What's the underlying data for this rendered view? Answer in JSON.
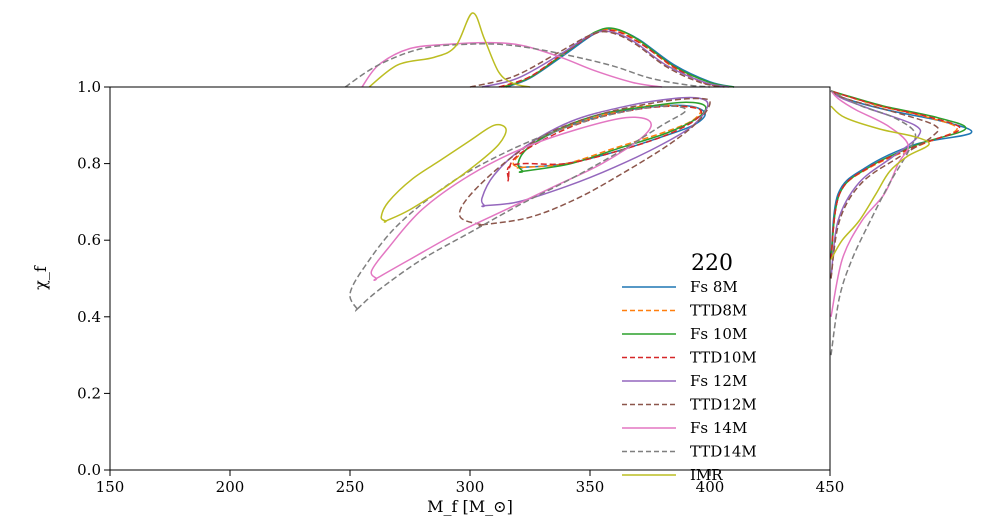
{
  "chart_data": {
    "type": "line",
    "title": "",
    "xlabel": "M_f [M_⊙]",
    "ylabel": "χ_f",
    "xlim": [
      150,
      450
    ],
    "ylim": [
      0.0,
      1.0
    ],
    "xticks": [
      "150",
      "200",
      "250",
      "300",
      "350",
      "400",
      "450"
    ],
    "yticks": [
      "0.0",
      "0.2",
      "0.4",
      "0.6",
      "0.8",
      "1.0"
    ],
    "grid": false,
    "legend": {
      "title": "220",
      "placement": "lower-right"
    },
    "series": [
      {
        "name": "Fs 8M",
        "color": "#1f77b4",
        "dash": "solid",
        "contour": [
          [
            322,
            0.79
          ],
          [
            340,
            0.8
          ],
          [
            360,
            0.83
          ],
          [
            380,
            0.87
          ],
          [
            393,
            0.9
          ],
          [
            398,
            0.93
          ],
          [
            392,
            0.95
          ],
          [
            378,
            0.95
          ],
          [
            358,
            0.93
          ],
          [
            338,
            0.89
          ],
          [
            324,
            0.84
          ],
          [
            320,
            0.8
          ],
          [
            322,
            0.79
          ]
        ],
        "mf_marginal": [
          [
            315,
            0.0
          ],
          [
            325,
            0.12
          ],
          [
            340,
            0.45
          ],
          [
            352,
            0.72
          ],
          [
            360,
            0.78
          ],
          [
            370,
            0.65
          ],
          [
            385,
            0.3
          ],
          [
            400,
            0.07
          ],
          [
            410,
            0.0
          ]
        ],
        "chi_marginal": [
          [
            0.55,
            0.0
          ],
          [
            0.72,
            0.05
          ],
          [
            0.79,
            0.25
          ],
          [
            0.85,
            0.6
          ],
          [
            0.88,
            1.0
          ],
          [
            0.91,
            0.8
          ],
          [
            0.94,
            0.4
          ],
          [
            0.97,
            0.1
          ],
          [
            0.99,
            0.0
          ]
        ]
      },
      {
        "name": "TTD8M",
        "color": "#ff7f0e",
        "dash": "dashed",
        "contour": [
          [
            321,
            0.79
          ],
          [
            340,
            0.8
          ],
          [
            360,
            0.84
          ],
          [
            380,
            0.88
          ],
          [
            392,
            0.91
          ],
          [
            396,
            0.94
          ],
          [
            388,
            0.95
          ],
          [
            372,
            0.95
          ],
          [
            352,
            0.92
          ],
          [
            334,
            0.88
          ],
          [
            322,
            0.83
          ],
          [
            318,
            0.8
          ],
          [
            321,
            0.79
          ]
        ],
        "mf_marginal": [
          [
            313,
            0.0
          ],
          [
            325,
            0.13
          ],
          [
            340,
            0.48
          ],
          [
            352,
            0.73
          ],
          [
            360,
            0.77
          ],
          [
            370,
            0.62
          ],
          [
            385,
            0.26
          ],
          [
            398,
            0.05
          ],
          [
            408,
            0.0
          ]
        ],
        "chi_marginal": [
          [
            0.55,
            0.0
          ],
          [
            0.72,
            0.06
          ],
          [
            0.79,
            0.28
          ],
          [
            0.85,
            0.65
          ],
          [
            0.89,
            0.9
          ],
          [
            0.92,
            0.7
          ],
          [
            0.95,
            0.35
          ],
          [
            0.98,
            0.08
          ],
          [
            0.99,
            0.0
          ]
        ]
      },
      {
        "name": "Fs 10M",
        "color": "#2ca02c",
        "dash": "solid",
        "contour": [
          [
            322,
            0.78
          ],
          [
            342,
            0.8
          ],
          [
            362,
            0.84
          ],
          [
            382,
            0.88
          ],
          [
            395,
            0.92
          ],
          [
            398,
            0.95
          ],
          [
            390,
            0.96
          ],
          [
            375,
            0.95
          ],
          [
            355,
            0.93
          ],
          [
            337,
            0.89
          ],
          [
            324,
            0.84
          ],
          [
            320,
            0.8
          ],
          [
            322,
            0.78
          ]
        ],
        "mf_marginal": [
          [
            314,
            0.0
          ],
          [
            325,
            0.13
          ],
          [
            340,
            0.47
          ],
          [
            352,
            0.74
          ],
          [
            360,
            0.79
          ],
          [
            370,
            0.64
          ],
          [
            385,
            0.28
          ],
          [
            400,
            0.06
          ],
          [
            410,
            0.0
          ]
        ],
        "chi_marginal": [
          [
            0.55,
            0.0
          ],
          [
            0.72,
            0.06
          ],
          [
            0.79,
            0.27
          ],
          [
            0.85,
            0.62
          ],
          [
            0.89,
            0.96
          ],
          [
            0.92,
            0.76
          ],
          [
            0.95,
            0.38
          ],
          [
            0.98,
            0.09
          ],
          [
            0.99,
            0.0
          ]
        ]
      },
      {
        "name": "TTD10M",
        "color": "#d62728",
        "dash": "dashed",
        "contour": [
          [
            316,
            0.76
          ],
          [
            316,
            0.79
          ],
          [
            322,
            0.8
          ],
          [
            340,
            0.8
          ],
          [
            360,
            0.83
          ],
          [
            380,
            0.87
          ],
          [
            393,
            0.91
          ],
          [
            396,
            0.94
          ],
          [
            385,
            0.95
          ],
          [
            368,
            0.94
          ],
          [
            348,
            0.91
          ],
          [
            330,
            0.86
          ],
          [
            318,
            0.81
          ],
          [
            316,
            0.76
          ]
        ],
        "mf_marginal": [
          [
            312,
            0.0
          ],
          [
            325,
            0.14
          ],
          [
            340,
            0.48
          ],
          [
            352,
            0.72
          ],
          [
            360,
            0.76
          ],
          [
            370,
            0.61
          ],
          [
            385,
            0.27
          ],
          [
            398,
            0.05
          ],
          [
            408,
            0.0
          ]
        ],
        "chi_marginal": [
          [
            0.55,
            0.0
          ],
          [
            0.72,
            0.06
          ],
          [
            0.79,
            0.27
          ],
          [
            0.85,
            0.64
          ],
          [
            0.89,
            0.92
          ],
          [
            0.92,
            0.72
          ],
          [
            0.95,
            0.36
          ],
          [
            0.98,
            0.08
          ],
          [
            0.99,
            0.0
          ]
        ]
      },
      {
        "name": "Fs 12M",
        "color": "#9467bd",
        "dash": "solid",
        "contour": [
          [
            306,
            0.69
          ],
          [
            320,
            0.7
          ],
          [
            340,
            0.74
          ],
          [
            360,
            0.79
          ],
          [
            380,
            0.85
          ],
          [
            393,
            0.9
          ],
          [
            399,
            0.95
          ],
          [
            396,
            0.97
          ],
          [
            385,
            0.97
          ],
          [
            365,
            0.95
          ],
          [
            342,
            0.91
          ],
          [
            322,
            0.84
          ],
          [
            310,
            0.77
          ],
          [
            305,
            0.71
          ],
          [
            306,
            0.69
          ]
        ],
        "mf_marginal": [
          [
            305,
            0.0
          ],
          [
            320,
            0.12
          ],
          [
            338,
            0.45
          ],
          [
            350,
            0.7
          ],
          [
            358,
            0.75
          ],
          [
            368,
            0.62
          ],
          [
            382,
            0.29
          ],
          [
            398,
            0.06
          ],
          [
            408,
            0.0
          ]
        ],
        "chi_marginal": [
          [
            0.5,
            0.0
          ],
          [
            0.65,
            0.05
          ],
          [
            0.75,
            0.2
          ],
          [
            0.82,
            0.45
          ],
          [
            0.87,
            0.62
          ],
          [
            0.9,
            0.6
          ],
          [
            0.94,
            0.3
          ],
          [
            0.97,
            0.08
          ],
          [
            0.99,
            0.0
          ]
        ]
      },
      {
        "name": "TTD12M",
        "color": "#8c564b",
        "dash": "dashed",
        "contour": [
          [
            305,
            0.64
          ],
          [
            325,
            0.66
          ],
          [
            345,
            0.71
          ],
          [
            365,
            0.78
          ],
          [
            383,
            0.85
          ],
          [
            395,
            0.91
          ],
          [
            400,
            0.96
          ],
          [
            394,
            0.97
          ],
          [
            378,
            0.96
          ],
          [
            355,
            0.93
          ],
          [
            333,
            0.88
          ],
          [
            314,
            0.8
          ],
          [
            299,
            0.71
          ],
          [
            296,
            0.66
          ],
          [
            305,
            0.64
          ]
        ],
        "mf_marginal": [
          [
            300,
            0.0
          ],
          [
            318,
            0.14
          ],
          [
            336,
            0.45
          ],
          [
            350,
            0.7
          ],
          [
            358,
            0.74
          ],
          [
            368,
            0.6
          ],
          [
            382,
            0.27
          ],
          [
            396,
            0.06
          ],
          [
            406,
            0.0
          ]
        ],
        "chi_marginal": [
          [
            0.5,
            0.0
          ],
          [
            0.65,
            0.06
          ],
          [
            0.75,
            0.22
          ],
          [
            0.82,
            0.5
          ],
          [
            0.87,
            0.72
          ],
          [
            0.9,
            0.74
          ],
          [
            0.94,
            0.4
          ],
          [
            0.97,
            0.1
          ],
          [
            0.99,
            0.0
          ]
        ]
      },
      {
        "name": "Fs 14M",
        "color": "#e377c2",
        "dash": "solid",
        "contour": [
          [
            261,
            0.5
          ],
          [
            275,
            0.55
          ],
          [
            295,
            0.62
          ],
          [
            315,
            0.68
          ],
          [
            335,
            0.74
          ],
          [
            355,
            0.8
          ],
          [
            372,
            0.87
          ],
          [
            375,
            0.91
          ],
          [
            365,
            0.92
          ],
          [
            345,
            0.89
          ],
          [
            322,
            0.84
          ],
          [
            300,
            0.77
          ],
          [
            280,
            0.68
          ],
          [
            266,
            0.58
          ],
          [
            259,
            0.52
          ],
          [
            261,
            0.5
          ]
        ],
        "mf_marginal": [
          [
            255,
            0.0
          ],
          [
            262,
            0.3
          ],
          [
            275,
            0.52
          ],
          [
            292,
            0.58
          ],
          [
            308,
            0.6
          ],
          [
            322,
            0.56
          ],
          [
            338,
            0.4
          ],
          [
            352,
            0.22
          ],
          [
            368,
            0.06
          ],
          [
            380,
            0.0
          ]
        ],
        "chi_marginal": [
          [
            0.4,
            0.0
          ],
          [
            0.55,
            0.08
          ],
          [
            0.65,
            0.22
          ],
          [
            0.72,
            0.38
          ],
          [
            0.8,
            0.48
          ],
          [
            0.85,
            0.55
          ],
          [
            0.9,
            0.4
          ],
          [
            0.94,
            0.18
          ],
          [
            0.97,
            0.05
          ],
          [
            0.99,
            0.0
          ]
        ]
      },
      {
        "name": "TTD14M",
        "color": "#7f7f7f",
        "dash": "dashed",
        "contour": [
          [
            253,
            0.42
          ],
          [
            262,
            0.47
          ],
          [
            280,
            0.55
          ],
          [
            300,
            0.62
          ],
          [
            320,
            0.69
          ],
          [
            342,
            0.76
          ],
          [
            362,
            0.83
          ],
          [
            380,
            0.9
          ],
          [
            390,
            0.94
          ],
          [
            380,
            0.95
          ],
          [
            360,
            0.93
          ],
          [
            338,
            0.89
          ],
          [
            315,
            0.83
          ],
          [
            292,
            0.75
          ],
          [
            270,
            0.64
          ],
          [
            256,
            0.53
          ],
          [
            250,
            0.46
          ],
          [
            253,
            0.42
          ]
        ],
        "mf_marginal": [
          [
            248,
            0.0
          ],
          [
            262,
            0.3
          ],
          [
            280,
            0.52
          ],
          [
            300,
            0.58
          ],
          [
            315,
            0.57
          ],
          [
            330,
            0.5
          ],
          [
            345,
            0.4
          ],
          [
            360,
            0.28
          ],
          [
            375,
            0.12
          ],
          [
            390,
            0.03
          ],
          [
            400,
            0.0
          ]
        ],
        "chi_marginal": [
          [
            0.3,
            0.0
          ],
          [
            0.45,
            0.06
          ],
          [
            0.55,
            0.15
          ],
          [
            0.65,
            0.28
          ],
          [
            0.75,
            0.42
          ],
          [
            0.83,
            0.55
          ],
          [
            0.88,
            0.6
          ],
          [
            0.92,
            0.45
          ],
          [
            0.95,
            0.22
          ],
          [
            0.98,
            0.05
          ],
          [
            0.99,
            0.0
          ]
        ]
      },
      {
        "name": "IMR",
        "color": "#bcbd22",
        "dash": "solid",
        "contour": [
          [
            265,
            0.65
          ],
          [
            275,
            0.68
          ],
          [
            290,
            0.74
          ],
          [
            303,
            0.8
          ],
          [
            312,
            0.85
          ],
          [
            315,
            0.89
          ],
          [
            310,
            0.9
          ],
          [
            300,
            0.86
          ],
          [
            288,
            0.81
          ],
          [
            276,
            0.76
          ],
          [
            266,
            0.7
          ],
          [
            263,
            0.66
          ],
          [
            265,
            0.65
          ]
        ],
        "mf_marginal": [
          [
            258,
            0.0
          ],
          [
            270,
            0.3
          ],
          [
            285,
            0.4
          ],
          [
            294,
            0.55
          ],
          [
            301,
            1.0
          ],
          [
            306,
            0.65
          ],
          [
            312,
            0.2
          ],
          [
            318,
            0.05
          ],
          [
            325,
            0.0
          ]
        ],
        "chi_marginal": [
          [
            0.55,
            0.0
          ],
          [
            0.6,
            0.08
          ],
          [
            0.65,
            0.2
          ],
          [
            0.72,
            0.32
          ],
          [
            0.78,
            0.42
          ],
          [
            0.82,
            0.55
          ],
          [
            0.85,
            0.7
          ],
          [
            0.87,
            0.6
          ],
          [
            0.89,
            0.35
          ],
          [
            0.92,
            0.1
          ],
          [
            0.95,
            0.0
          ]
        ]
      }
    ]
  }
}
